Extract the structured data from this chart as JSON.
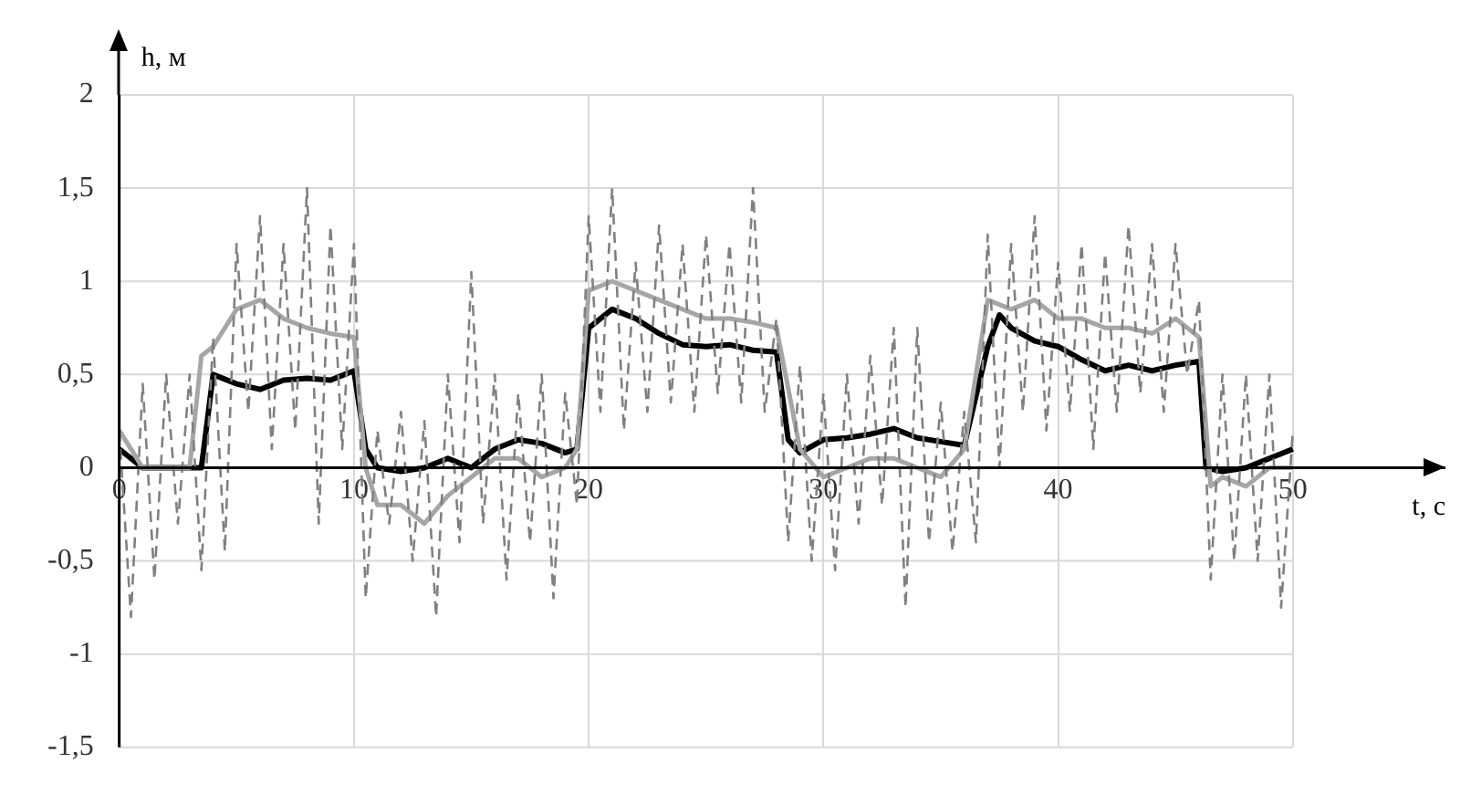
{
  "chart_data": {
    "type": "line",
    "xlabel": "t, с",
    "ylabel": "h, м",
    "xlim": [
      0,
      56.5
    ],
    "xticks": [
      0,
      10,
      20,
      30,
      40,
      50
    ],
    "ylim": [
      -1.5,
      2
    ],
    "yticks": [
      {
        "value": -1.5,
        "label": "-1,5"
      },
      -1,
      {
        "value": -0.5,
        "label": "-0,5"
      },
      0,
      {
        "value": 0.5,
        "label": "0,5"
      },
      1,
      {
        "value": 1.5,
        "label": "1,5"
      },
      2
    ],
    "grid": true,
    "legend": false,
    "marker": "none",
    "series": [
      {
        "color": "#808080",
        "line_style": "dashed",
        "x": [
          0,
          0.5,
          1,
          1.5,
          2,
          2.5,
          3,
          3.5,
          4,
          4.5,
          5,
          5.5,
          6,
          6.5,
          7,
          7.5,
          8,
          8.5,
          9,
          9.5,
          10,
          10.5,
          11,
          11.5,
          12,
          12.5,
          13,
          13.5,
          14,
          14.5,
          15,
          15.5,
          16,
          16.5,
          17,
          17.5,
          18,
          18.5,
          19,
          19.5,
          20,
          20.5,
          21,
          21.5,
          22,
          22.5,
          23,
          23.5,
          24,
          24.5,
          25,
          25.5,
          26,
          26.5,
          27,
          27.5,
          28,
          28.5,
          29,
          29.5,
          30,
          30.5,
          31,
          31.5,
          32,
          32.5,
          33,
          33.5,
          34,
          34.5,
          35,
          35.5,
          36,
          36.5,
          37,
          37.5,
          38,
          38.5,
          39,
          39.5,
          40,
          40.5,
          41,
          41.5,
          42,
          42.5,
          43,
          43.5,
          44,
          44.5,
          45,
          45.5,
          46,
          46.5,
          47,
          47.5,
          48,
          48.5,
          49,
          49.5,
          50
        ],
        "values": [
          0.2,
          -0.8,
          0.45,
          -0.6,
          0.5,
          -0.3,
          0.5,
          -0.55,
          0.7,
          -0.45,
          1.2,
          0.3,
          1.35,
          0.1,
          1.2,
          0.2,
          1.5,
          -0.3,
          1.3,
          0.1,
          1.2,
          -0.7,
          0.2,
          -0.3,
          0.3,
          -0.5,
          0.25,
          -0.8,
          0.5,
          -0.4,
          1.05,
          -0.3,
          0.5,
          -0.6,
          0.4,
          -0.4,
          0.5,
          -0.7,
          0.4,
          -0.2,
          1.35,
          0.3,
          1.5,
          0.2,
          1.1,
          0.3,
          1.3,
          0.35,
          1.2,
          0.3,
          1.25,
          0.4,
          1.2,
          0.35,
          1.5,
          0.3,
          0.8,
          -0.4,
          0.55,
          -0.5,
          0.4,
          -0.55,
          0.5,
          -0.3,
          0.6,
          -0.2,
          0.75,
          -0.75,
          0.75,
          -0.4,
          0.35,
          -0.45,
          0.3,
          -0.4,
          1.25,
          0,
          1.2,
          0.3,
          1.35,
          0.2,
          1.1,
          0.3,
          1.2,
          0.1,
          1.15,
          0.3,
          1.3,
          0.4,
          1.2,
          0.3,
          1.2,
          0.5,
          0.9,
          -0.6,
          0.5,
          -0.5,
          0.5,
          -0.5,
          0.5,
          -0.75,
          0.2
        ]
      },
      {
        "color": "#a6a6a6",
        "line_style": "solid",
        "x": [
          0,
          1,
          3,
          3.5,
          4,
          5,
          6,
          7,
          8,
          9,
          10,
          10.5,
          11,
          12,
          13,
          14,
          15,
          16,
          17,
          18,
          19,
          19.5,
          20,
          21,
          22,
          23,
          24,
          25,
          26,
          27,
          28,
          29,
          30,
          31,
          32,
          33,
          34,
          35,
          36,
          37,
          38,
          39,
          40,
          41,
          42,
          43,
          44,
          45,
          46,
          46.5,
          47,
          48,
          49,
          50
        ],
        "values": [
          0.2,
          0,
          0,
          0.6,
          0.65,
          0.85,
          0.9,
          0.8,
          0.75,
          0.72,
          0.7,
          0,
          -0.2,
          -0.2,
          -0.3,
          -0.15,
          -0.05,
          0.05,
          0.05,
          -0.05,
          0,
          0.1,
          0.95,
          1,
          0.95,
          0.9,
          0.85,
          0.8,
          0.8,
          0.78,
          0.75,
          0.1,
          -0.05,
          0,
          0.05,
          0.05,
          0,
          -0.05,
          0.1,
          0.9,
          0.85,
          0.9,
          0.8,
          0.8,
          0.75,
          0.75,
          0.72,
          0.8,
          0.7,
          -0.1,
          -0.05,
          -0.1,
          0,
          0
        ]
      },
      {
        "color": "#000000",
        "line_style": "solid",
        "x": [
          0,
          1,
          3.5,
          4,
          5,
          6,
          7,
          8,
          9,
          10,
          10.5,
          11,
          12,
          13,
          14,
          15,
          16,
          17,
          18,
          19,
          19.5,
          20,
          21,
          22,
          23,
          24,
          25,
          26,
          27,
          28,
          28.5,
          29,
          30,
          31,
          32,
          33,
          34,
          35,
          36,
          37,
          37.5,
          38,
          39,
          40,
          41,
          42,
          43,
          44,
          45,
          46,
          46.3,
          47,
          48,
          49,
          50
        ],
        "values": [
          0.1,
          0,
          0,
          0.5,
          0.45,
          0.42,
          0.47,
          0.48,
          0.47,
          0.52,
          0.1,
          0,
          -0.02,
          0,
          0.05,
          0,
          0.1,
          0.15,
          0.13,
          0.08,
          0.1,
          0.75,
          0.85,
          0.8,
          0.72,
          0.66,
          0.65,
          0.66,
          0.63,
          0.62,
          0.15,
          0.08,
          0.15,
          0.16,
          0.18,
          0.21,
          0.16,
          0.14,
          0.12,
          0.65,
          0.82,
          0.75,
          0.68,
          0.65,
          0.58,
          0.52,
          0.55,
          0.52,
          0.55,
          0.57,
          0,
          -0.02,
          0,
          0.05,
          0.1
        ]
      }
    ]
  }
}
